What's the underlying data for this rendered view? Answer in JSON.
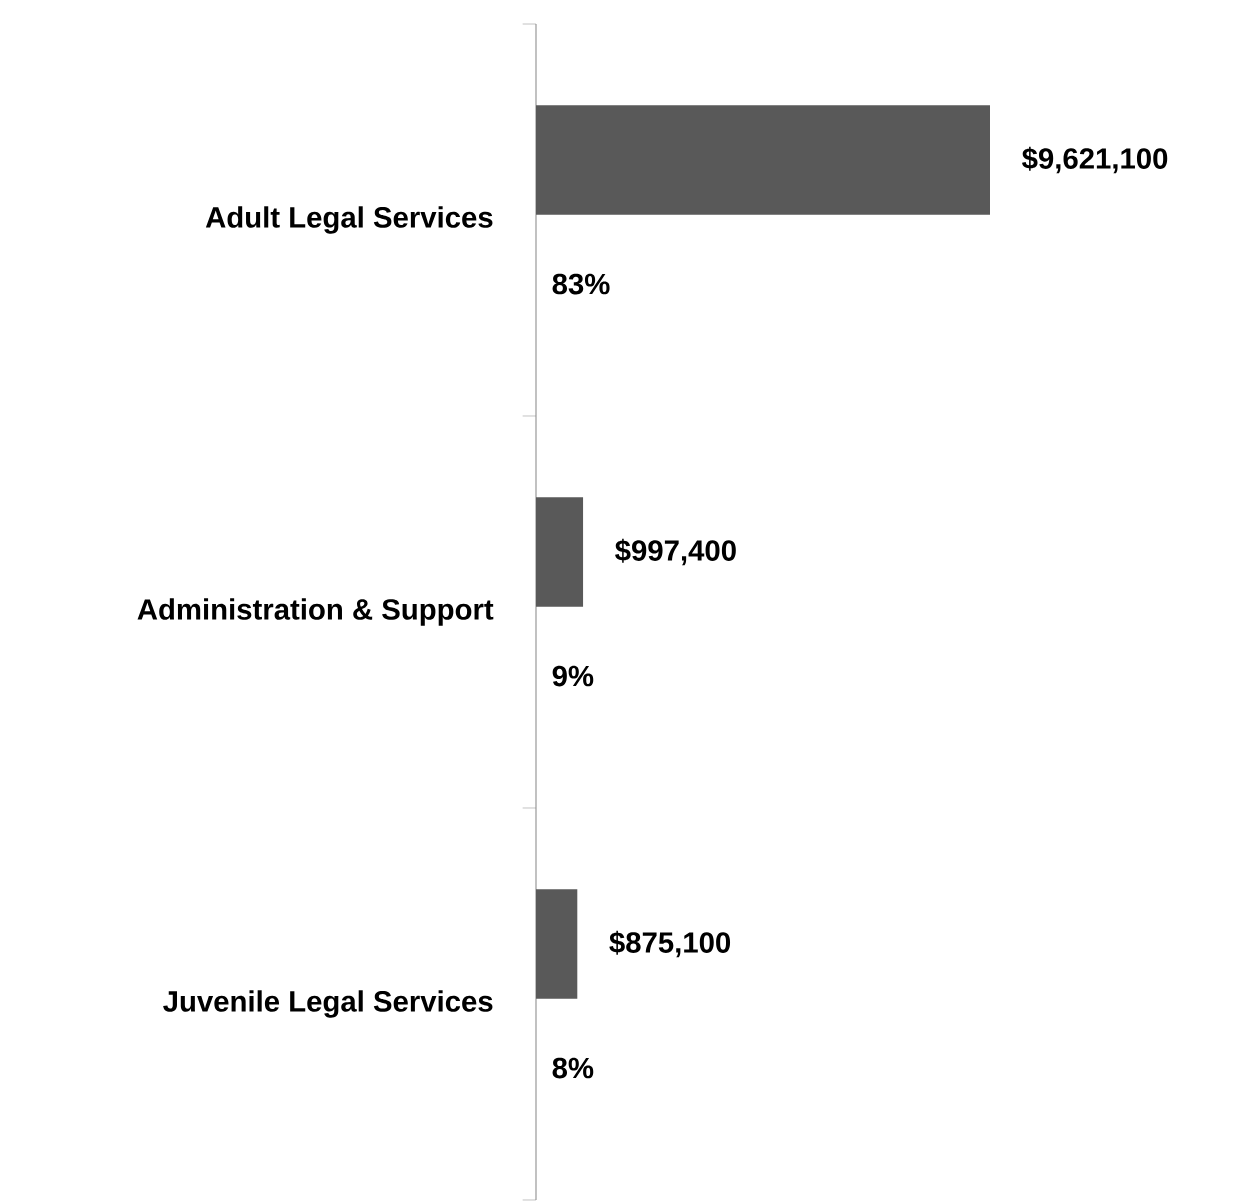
{
  "chart_data": {
    "type": "bar",
    "orientation": "horizontal",
    "categories": [
      "Adult Legal Services",
      "Administration & Support",
      "Juvenile Legal Services"
    ],
    "values": [
      9621100,
      997400,
      875100
    ],
    "value_labels": [
      "$9,621,100",
      "$997,400",
      "$875,100"
    ],
    "color": "#595959",
    "annotations": [
      "83%",
      "9%",
      "8%"
    ]
  }
}
